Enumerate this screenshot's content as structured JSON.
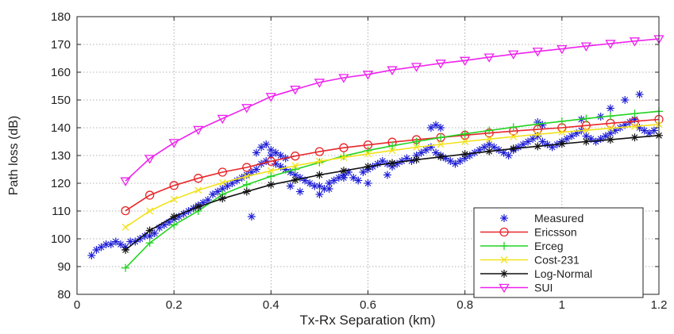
{
  "chart_data": {
    "type": "line",
    "xlabel": "Tx-Rx Separation (km)",
    "ylabel": "Path loss (dB)",
    "xlim": [
      0,
      1.2
    ],
    "ylim": [
      80,
      180
    ],
    "x_ticks": [
      0,
      0.2,
      0.4,
      0.6,
      0.8,
      1,
      1.2
    ],
    "x_tick_labels": [
      "0",
      "0.2",
      "0.4",
      "0.6",
      "0.8",
      "1",
      "1.2"
    ],
    "y_ticks": [
      80,
      90,
      100,
      110,
      120,
      130,
      140,
      150,
      160,
      170,
      180
    ],
    "y_tick_labels": [
      "80",
      "90",
      "100",
      "110",
      "120",
      "130",
      "140",
      "150",
      "160",
      "170",
      "180"
    ],
    "grid": "dotted",
    "legend_position": "bottom-right",
    "series": [
      {
        "name": "Measured",
        "style": "scatter",
        "marker": "asterisk",
        "color": "#1f1fd6",
        "x": [
          0.03,
          0.04,
          0.05,
          0.06,
          0.07,
          0.08,
          0.09,
          0.1,
          0.11,
          0.12,
          0.13,
          0.14,
          0.15,
          0.16,
          0.17,
          0.18,
          0.19,
          0.2,
          0.21,
          0.22,
          0.23,
          0.24,
          0.25,
          0.26,
          0.27,
          0.28,
          0.29,
          0.3,
          0.31,
          0.32,
          0.33,
          0.34,
          0.35,
          0.36,
          0.37,
          0.38,
          0.39,
          0.4,
          0.41,
          0.42,
          0.43,
          0.44,
          0.45,
          0.46,
          0.47,
          0.48,
          0.49,
          0.5,
          0.51,
          0.52,
          0.53,
          0.54,
          0.55,
          0.56,
          0.57,
          0.58,
          0.59,
          0.6,
          0.61,
          0.62,
          0.63,
          0.64,
          0.65,
          0.66,
          0.67,
          0.68,
          0.69,
          0.7,
          0.71,
          0.72,
          0.73,
          0.74,
          0.75,
          0.76,
          0.77,
          0.78,
          0.79,
          0.8,
          0.81,
          0.82,
          0.83,
          0.84,
          0.85,
          0.86,
          0.87,
          0.88,
          0.89,
          0.9,
          0.91,
          0.92,
          0.93,
          0.94,
          0.95,
          0.96,
          0.97,
          0.98,
          0.99,
          1.0,
          1.01,
          1.02,
          1.03,
          1.04,
          1.05,
          1.06,
          1.07,
          1.08,
          1.09,
          1.1,
          1.11,
          1.12,
          1.13,
          1.14,
          1.15,
          1.16,
          1.17,
          1.18,
          1.19,
          0.37,
          0.38,
          0.39,
          0.4,
          0.41,
          0.42,
          0.43,
          0.73,
          0.74,
          0.75,
          0.95,
          0.96,
          1.04,
          1.08,
          1.1,
          1.13,
          1.16,
          0.55,
          0.6,
          0.64,
          0.36,
          0.44,
          0.46,
          0.5,
          0.52
        ],
        "y": [
          94,
          96,
          97,
          98,
          98,
          99,
          98,
          97,
          99,
          99,
          100,
          101,
          101,
          102,
          104,
          105,
          106,
          107,
          108,
          109,
          110,
          111,
          112,
          113,
          114,
          116,
          117,
          118,
          119,
          120,
          121,
          122,
          123,
          124,
          125,
          127,
          128,
          130,
          127,
          126,
          125,
          124,
          123,
          122,
          121,
          120,
          119,
          119,
          118,
          120,
          121,
          122,
          123,
          124,
          122,
          121,
          124,
          125,
          126,
          127,
          128,
          127,
          126,
          127,
          128,
          129,
          128,
          130,
          131,
          132,
          133,
          131,
          130,
          129,
          128,
          127,
          128,
          129,
          130,
          131,
          132,
          133,
          134,
          133,
          132,
          131,
          130,
          132,
          133,
          134,
          135,
          136,
          137,
          135,
          134,
          133,
          134,
          135,
          136,
          137,
          138,
          139,
          137,
          136,
          135,
          136,
          137,
          138,
          139,
          140,
          141,
          142,
          143,
          140,
          139,
          138,
          139,
          131,
          133,
          134,
          132,
          131,
          130,
          129,
          140,
          141,
          140,
          142,
          141,
          143,
          144,
          147,
          150,
          152,
          122,
          120,
          123,
          108,
          119,
          117,
          116,
          118
        ]
      },
      {
        "name": "Ericsson",
        "style": "line",
        "marker": "circle",
        "color": "#e8262a",
        "x": [
          0.1,
          0.15,
          0.2,
          0.25,
          0.3,
          0.35,
          0.4,
          0.45,
          0.5,
          0.55,
          0.6,
          0.65,
          0.7,
          0.75,
          0.8,
          0.85,
          0.9,
          0.95,
          1.0,
          1.05,
          1.1,
          1.15,
          1.2
        ],
        "y": [
          110.1,
          115.7,
          119.2,
          121.8,
          124.0,
          125.7,
          127.9,
          129.8,
          131.4,
          132.8,
          133.8,
          134.8,
          135.7,
          136.5,
          137.3,
          138.1,
          138.8,
          139.4,
          140.0,
          140.8,
          141.6,
          142.3,
          143.0
        ]
      },
      {
        "name": "Erceg",
        "style": "line",
        "marker": "plus",
        "color": "#22d322",
        "x": [
          0.1,
          0.15,
          0.2,
          0.25,
          0.3,
          0.35,
          0.4,
          0.45,
          0.5,
          0.55,
          0.6,
          0.65,
          0.7,
          0.75,
          0.8,
          0.85,
          0.9,
          0.95,
          1.0,
          1.05,
          1.1,
          1.15,
          1.2
        ],
        "y": [
          89.5,
          98.5,
          105.0,
          110.0,
          116.0,
          119.5,
          122.5,
          125.0,
          127.5,
          129.8,
          131.8,
          133.5,
          135.0,
          136.5,
          137.8,
          139.0,
          140.2,
          141.3,
          142.3,
          143.3,
          144.2,
          145.1,
          145.9
        ]
      },
      {
        "name": "Cost-231",
        "style": "line",
        "marker": "x",
        "color": "#f2e21a",
        "x": [
          0.1,
          0.15,
          0.2,
          0.25,
          0.3,
          0.35,
          0.4,
          0.45,
          0.5,
          0.55,
          0.6,
          0.65,
          0.7,
          0.75,
          0.8,
          0.85,
          0.9,
          0.95,
          1.0,
          1.05,
          1.1,
          1.15,
          1.2
        ],
        "y": [
          104.2,
          110.0,
          114.2,
          117.5,
          120.2,
          122.5,
          124.5,
          126.3,
          127.9,
          129.3,
          130.6,
          131.8,
          133.0,
          134.0,
          135.0,
          135.9,
          136.8,
          137.6,
          138.4,
          139.1,
          139.8,
          140.5,
          141.2
        ]
      },
      {
        "name": "Log-Normal",
        "style": "line",
        "marker": "asterisk",
        "color": "#111111",
        "x": [
          0.1,
          0.15,
          0.2,
          0.25,
          0.3,
          0.35,
          0.4,
          0.45,
          0.5,
          0.55,
          0.6,
          0.65,
          0.7,
          0.75,
          0.8,
          0.85,
          0.9,
          0.95,
          1.0,
          1.05,
          1.1,
          1.15,
          1.2
        ],
        "y": [
          96.0,
          103.0,
          108.0,
          111.5,
          114.5,
          117.0,
          119.5,
          121.2,
          123.0,
          124.5,
          126.0,
          127.3,
          128.5,
          129.5,
          130.5,
          131.5,
          132.5,
          133.3,
          134.2,
          135.0,
          135.7,
          136.5,
          137.2
        ]
      },
      {
        "name": "SUI",
        "style": "line",
        "marker": "triangle-down",
        "color": "#ee22ee",
        "x": [
          0.1,
          0.15,
          0.2,
          0.25,
          0.3,
          0.35,
          0.4,
          0.45,
          0.5,
          0.55,
          0.6,
          0.65,
          0.7,
          0.75,
          0.8,
          0.85,
          0.9,
          0.95,
          1.0,
          1.05,
          1.1,
          1.15,
          1.2
        ],
        "y": [
          120.8,
          128.9,
          134.6,
          139.3,
          143.3,
          147.2,
          151.2,
          153.8,
          156.3,
          158.0,
          159.2,
          160.8,
          162.0,
          163.2,
          164.2,
          165.4,
          166.5,
          167.5,
          168.4,
          169.4,
          170.3,
          171.2,
          172.0
        ]
      }
    ]
  }
}
